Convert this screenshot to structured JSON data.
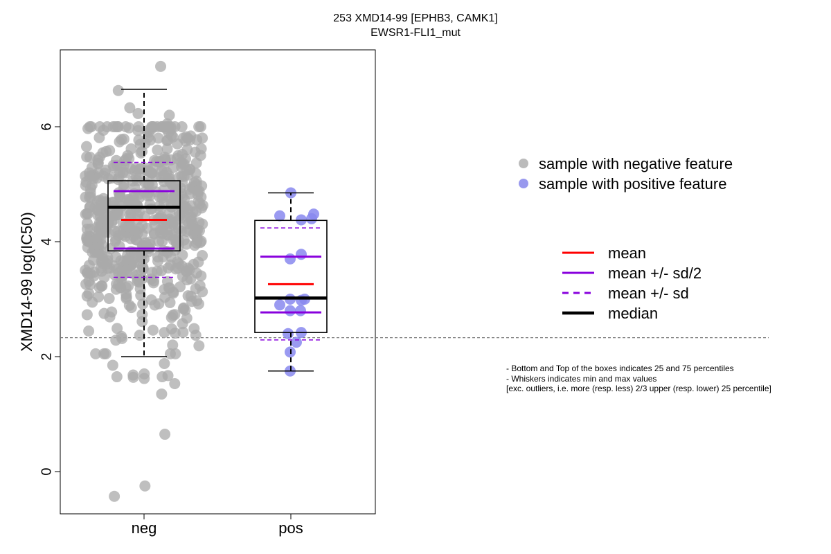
{
  "title_line1": "253 XMD14-99 [EPHB3, CAMK1]",
  "title_line2": "EWSR1-FLI1_mut",
  "notes": [
    "- Bottom and Top of the boxes indicates 25 and 75 percentiles",
    "- Whiskers indicates min and max values",
    "[exc. outliers, i.e. more (resp. less) 2/3 upper (resp. lower) 25 percentile]"
  ],
  "colors": {
    "neg_points": "#aaaaaa",
    "pos_points": "#8888ee",
    "mean": "#ff0000",
    "sd": "#8800dd",
    "median": "#000000",
    "threshold": "#777777"
  },
  "legend_points": [
    {
      "label": "sample with negative feature",
      "color": "#bbbbbb"
    },
    {
      "label": "sample with positive feature",
      "color": "#9999ee"
    }
  ],
  "legend_lines": [
    {
      "label": "mean",
      "color": "#ff0000",
      "style": "solid",
      "weight": "normal"
    },
    {
      "label": "mean +/- sd/2",
      "color": "#8800dd",
      "style": "solid",
      "weight": "normal"
    },
    {
      "label": "mean +/- sd",
      "color": "#8800dd",
      "style": "dashed",
      "weight": "normal"
    },
    {
      "label": "median",
      "color": "#000000",
      "style": "solid",
      "weight": "bold"
    }
  ],
  "chart_data": {
    "type": "box",
    "title": "253 XMD14-99 [EPHB3, CAMK1]",
    "subtitle": "EWSR1-FLI1_mut",
    "xlabel": "",
    "ylabel": "XMD14-99 log(IC50)",
    "categories": [
      "neg",
      "pos"
    ],
    "ylim": [
      -0.7,
      7.4
    ],
    "yticks": [
      0,
      2,
      4,
      6
    ],
    "threshold_line": 2.33,
    "groups": [
      {
        "name": "neg",
        "q1": 3.84,
        "median": 4.6,
        "q3": 5.06,
        "whisker_low": 2.0,
        "whisker_high": 6.65,
        "mean": 4.38,
        "mean_minus_half_sd": 3.88,
        "mean_plus_half_sd": 4.88,
        "mean_minus_sd": 3.38,
        "mean_plus_sd": 5.38,
        "point_count": 640,
        "outliers": [
          7.05,
          1.35,
          0.65,
          -0.25,
          -0.43
        ],
        "points_sample": [
          6.63,
          6.33,
          6.23,
          6.2,
          6.05,
          5.98,
          5.9,
          5.85,
          1.88,
          1.85,
          1.7,
          1.68,
          1.67,
          1.65,
          1.65,
          1.64,
          1.62,
          1.53
        ]
      },
      {
        "name": "pos",
        "q1": 2.42,
        "median": 3.02,
        "q3": 4.37,
        "whisker_low": 1.75,
        "whisker_high": 4.85,
        "mean": 3.26,
        "mean_minus_half_sd": 2.77,
        "mean_plus_half_sd": 3.74,
        "mean_minus_sd": 2.29,
        "mean_plus_sd": 4.24,
        "points": [
          4.85,
          4.48,
          4.45,
          4.4,
          4.38,
          3.78,
          3.7,
          3.0,
          3.0,
          2.98,
          2.9,
          2.8,
          2.8,
          2.42,
          2.4,
          2.25,
          2.08,
          1.75
        ]
      }
    ]
  }
}
